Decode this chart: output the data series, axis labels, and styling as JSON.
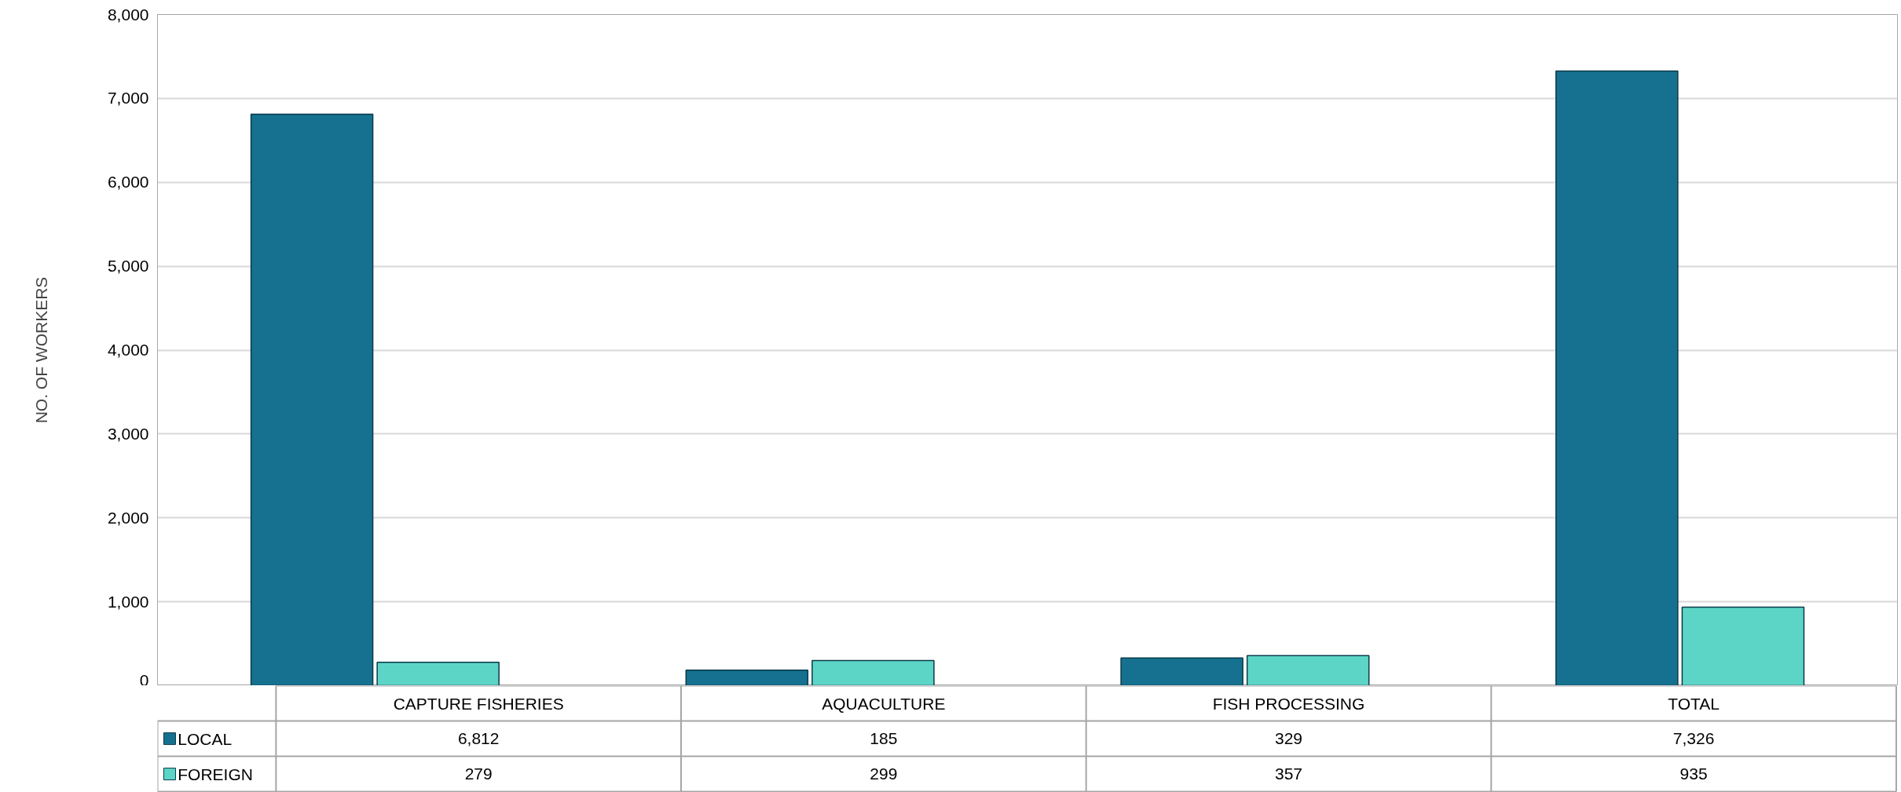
{
  "chart_data": {
    "type": "bar",
    "ylabel": "NO. OF WORKERS",
    "categories": [
      "CAPTURE FISHERIES",
      "AQUACULTURE",
      "FISH PROCESSING",
      "TOTAL"
    ],
    "series": [
      {
        "name": "LOCAL",
        "color": "#15718f",
        "values": [
          6812,
          185,
          329,
          7326
        ],
        "value_labels": [
          "6,812",
          "185",
          "329",
          "7,326"
        ]
      },
      {
        "name": "FOREIGN",
        "color": "#5dd5c6",
        "values": [
          279,
          299,
          357,
          935
        ],
        "value_labels": [
          "279",
          "299",
          "357",
          "935"
        ]
      }
    ],
    "ylim": [
      0,
      8000
    ],
    "yticks": [
      {
        "value": 0,
        "label": "0"
      },
      {
        "value": 1000,
        "label": "1,000"
      },
      {
        "value": 2000,
        "label": "2,000"
      },
      {
        "value": 3000,
        "label": "3,000"
      },
      {
        "value": 4000,
        "label": "4,000"
      },
      {
        "value": 5000,
        "label": "5,000"
      },
      {
        "value": 6000,
        "label": "6,000"
      },
      {
        "value": 7000,
        "label": "7,000"
      },
      {
        "value": 8000,
        "label": "8,000"
      }
    ],
    "grid": "y",
    "legend": "bottom"
  }
}
